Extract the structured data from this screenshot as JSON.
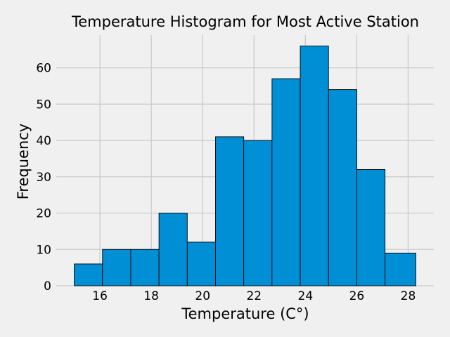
{
  "chart_data": {
    "type": "bar",
    "title": "Temperature Histogram for Most Active Station",
    "xlabel": "Temperature (C°)",
    "ylabel": "Frequency",
    "bin_edges": [
      15.0,
      16.1,
      17.2,
      18.3,
      19.4,
      20.5,
      21.6,
      22.7,
      23.8,
      24.9,
      26.0,
      27.1,
      28.3
    ],
    "values": [
      6,
      10,
      10,
      20,
      12,
      41,
      40,
      57,
      66,
      54,
      32,
      9
    ],
    "xlim": [
      14.3,
      29.0
    ],
    "ylim": [
      0,
      69
    ],
    "xticks": [
      16,
      18,
      20,
      22,
      24,
      26,
      28
    ],
    "yticks": [
      0,
      10,
      20,
      30,
      40,
      50,
      60
    ],
    "grid": true,
    "colors": {
      "bar": "#008fd5",
      "background": "#f0f0f0",
      "grid": "#cbcbcb"
    }
  }
}
